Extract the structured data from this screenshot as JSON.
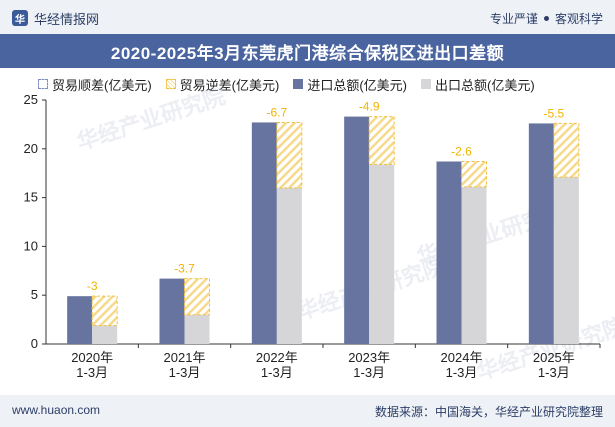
{
  "header": {
    "brand": "华经情报网",
    "tagline_left": "专业严谨",
    "tagline_right": "客观科学"
  },
  "footer": {
    "url": "www.huaon.com",
    "source": "数据来源：中国海关，华经产业研究院整理"
  },
  "watermark": "华经产业研究院",
  "colors": {
    "import": "#66749f",
    "export": "#d6d6d9",
    "deficit_border": "#f0c040",
    "deficit_label": "#f0b400",
    "title_bg": "#4a64a0"
  },
  "chart_data": {
    "type": "bar",
    "title": "2020-2025年3月东莞虎门港综合保税区进出口差额",
    "categories": [
      "2020年\n1-3月",
      "2021年\n1-3月",
      "2022年\n1-3月",
      "2023年\n1-3月",
      "2024年\n1-3月",
      "2025年\n1-3月"
    ],
    "legend": [
      "贸易顺差(亿美元)",
      "贸易逆差(亿美元)",
      "进口总额(亿美元)",
      "出口总额(亿美元)"
    ],
    "series": [
      {
        "name": "进口总额(亿美元)",
        "values": [
          4.9,
          6.7,
          22.7,
          23.3,
          18.7,
          22.6
        ]
      },
      {
        "name": "出口总额(亿美元)",
        "values": [
          1.9,
          3.0,
          16.0,
          18.4,
          16.1,
          17.1
        ]
      },
      {
        "name": "贸易逆差(亿美元)",
        "values": [
          -3,
          -3.7,
          -6.7,
          -4.9,
          -2.6,
          -5.5
        ]
      }
    ],
    "ylim": [
      0,
      25
    ],
    "yticks": [
      0,
      5,
      10,
      15,
      20,
      25
    ],
    "xlabel": "",
    "ylabel": "",
    "grid": false
  }
}
